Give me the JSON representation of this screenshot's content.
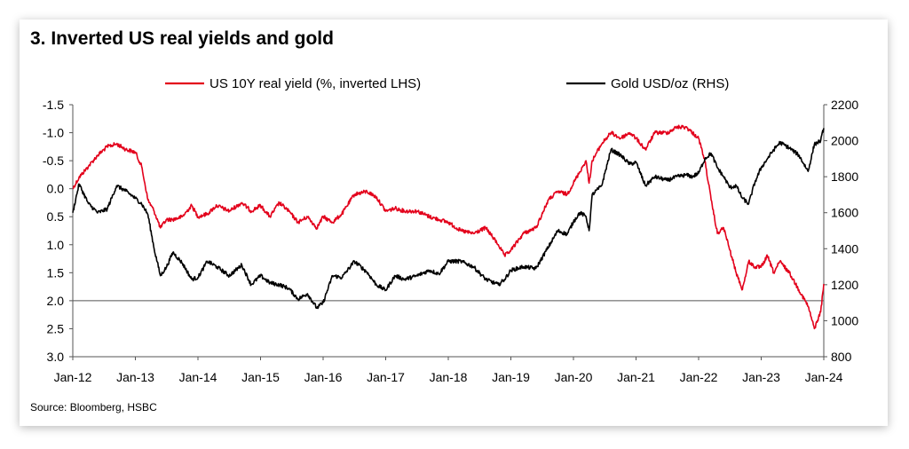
{
  "title": "3. Inverted US real yields and gold",
  "source": "Source: Bloomberg, HSBC",
  "chart_data": {
    "type": "line",
    "title": "3. Inverted US real yields and gold",
    "x_tick_labels": [
      "Jan-12",
      "Jan-13",
      "Jan-14",
      "Jan-15",
      "Jan-16",
      "Jan-17",
      "Jan-18",
      "Jan-19",
      "Jan-20",
      "Jan-21",
      "Jan-22",
      "Jan-23",
      "Jan-24"
    ],
    "x_range": [
      2012.0,
      2024.0
    ],
    "y_left": {
      "label": "US 10Y real yield (%, inverted LHS)",
      "range": [
        -1.5,
        3.0
      ],
      "inverted": true,
      "ticks": [
        "-1.5",
        "-1.0",
        "-0.5",
        "0.0",
        "0.5",
        "1.0",
        "1.5",
        "2.0",
        "2.5",
        "3.0"
      ]
    },
    "y_right": {
      "label": "Gold USD/oz (RHS)",
      "range": [
        800,
        2200
      ],
      "ticks": [
        "2200",
        "2000",
        "1800",
        "1600",
        "1400",
        "1200",
        "1000",
        "800"
      ]
    },
    "legend_position": "top",
    "series": [
      {
        "name": "US 10Y real yield (%, inverted LHS)",
        "axis": "left",
        "color": "#e3001b",
        "x": [
          2012.0,
          2012.1,
          2012.25,
          2012.4,
          2012.55,
          2012.7,
          2012.85,
          2013.0,
          2013.1,
          2013.2,
          2013.3,
          2013.4,
          2013.5,
          2013.6,
          2013.75,
          2013.9,
          2014.0,
          2014.15,
          2014.3,
          2014.5,
          2014.7,
          2014.85,
          2015.0,
          2015.15,
          2015.3,
          2015.45,
          2015.6,
          2015.75,
          2015.9,
          2016.0,
          2016.15,
          2016.3,
          2016.5,
          2016.7,
          2016.85,
          2017.0,
          2017.15,
          2017.3,
          2017.5,
          2017.7,
          2017.85,
          2018.0,
          2018.2,
          2018.4,
          2018.6,
          2018.8,
          2018.9,
          2019.0,
          2019.2,
          2019.4,
          2019.6,
          2019.75,
          2019.9,
          2020.0,
          2020.1,
          2020.2,
          2020.25,
          2020.3,
          2020.45,
          2020.6,
          2020.75,
          2020.9,
          2021.0,
          2021.15,
          2021.3,
          2021.5,
          2021.65,
          2021.8,
          2021.9,
          2022.0,
          2022.1,
          2022.2,
          2022.3,
          2022.4,
          2022.5,
          2022.6,
          2022.7,
          2022.8,
          2022.9,
          2023.0,
          2023.1,
          2023.2,
          2023.3,
          2023.45,
          2023.6,
          2023.75,
          2023.85,
          2023.95,
          2024.0
        ],
        "values": [
          0.0,
          -0.2,
          -0.4,
          -0.6,
          -0.75,
          -0.8,
          -0.7,
          -0.65,
          -0.4,
          0.2,
          0.4,
          0.7,
          0.55,
          0.55,
          0.5,
          0.3,
          0.5,
          0.45,
          0.3,
          0.4,
          0.25,
          0.4,
          0.3,
          0.5,
          0.25,
          0.4,
          0.6,
          0.5,
          0.7,
          0.5,
          0.6,
          0.45,
          0.1,
          0.05,
          0.15,
          0.4,
          0.35,
          0.4,
          0.4,
          0.5,
          0.55,
          0.6,
          0.75,
          0.8,
          0.7,
          1.0,
          1.2,
          1.1,
          0.8,
          0.7,
          0.2,
          0.05,
          0.1,
          -0.1,
          -0.3,
          -0.5,
          -0.1,
          -0.5,
          -0.8,
          -1.0,
          -0.9,
          -1.0,
          -0.9,
          -0.7,
          -1.0,
          -1.0,
          -1.1,
          -1.1,
          -1.0,
          -0.9,
          -0.5,
          0.2,
          0.8,
          0.7,
          1.1,
          1.5,
          1.8,
          1.3,
          1.4,
          1.4,
          1.2,
          1.5,
          1.3,
          1.5,
          1.8,
          2.1,
          2.5,
          2.2,
          1.7
        ]
      },
      {
        "name": "Gold USD/oz (RHS)",
        "axis": "right",
        "color": "#000000",
        "x": [
          2012.0,
          2012.1,
          2012.25,
          2012.4,
          2012.55,
          2012.7,
          2012.85,
          2013.0,
          2013.1,
          2013.2,
          2013.3,
          2013.4,
          2013.5,
          2013.6,
          2013.75,
          2013.9,
          2014.0,
          2014.15,
          2014.3,
          2014.5,
          2014.7,
          2014.85,
          2015.0,
          2015.15,
          2015.3,
          2015.45,
          2015.6,
          2015.75,
          2015.9,
          2016.0,
          2016.15,
          2016.3,
          2016.5,
          2016.7,
          2016.85,
          2017.0,
          2017.15,
          2017.3,
          2017.5,
          2017.7,
          2017.85,
          2018.0,
          2018.2,
          2018.4,
          2018.6,
          2018.8,
          2018.9,
          2019.0,
          2019.2,
          2019.4,
          2019.6,
          2019.75,
          2019.9,
          2020.0,
          2020.1,
          2020.2,
          2020.25,
          2020.3,
          2020.45,
          2020.6,
          2020.75,
          2020.9,
          2021.0,
          2021.15,
          2021.3,
          2021.5,
          2021.65,
          2021.8,
          2021.9,
          2022.0,
          2022.1,
          2022.2,
          2022.3,
          2022.4,
          2022.5,
          2022.6,
          2022.7,
          2022.8,
          2022.9,
          2023.0,
          2023.1,
          2023.2,
          2023.3,
          2023.45,
          2023.6,
          2023.75,
          2023.85,
          2023.95,
          2024.0
        ],
        "values": [
          1600,
          1760,
          1650,
          1600,
          1620,
          1750,
          1720,
          1680,
          1650,
          1590,
          1400,
          1250,
          1300,
          1380,
          1320,
          1230,
          1240,
          1330,
          1300,
          1250,
          1310,
          1200,
          1250,
          1210,
          1200,
          1180,
          1120,
          1150,
          1070,
          1100,
          1250,
          1240,
          1330,
          1270,
          1200,
          1170,
          1250,
          1230,
          1250,
          1280,
          1260,
          1330,
          1330,
          1300,
          1230,
          1200,
          1230,
          1280,
          1300,
          1290,
          1410,
          1500,
          1480,
          1550,
          1600,
          1580,
          1500,
          1700,
          1750,
          1950,
          1920,
          1870,
          1880,
          1750,
          1800,
          1780,
          1800,
          1810,
          1800,
          1820,
          1900,
          1930,
          1850,
          1800,
          1740,
          1750,
          1680,
          1650,
          1770,
          1850,
          1900,
          1950,
          1990,
          1960,
          1920,
          1830,
          1980,
          2000,
          2070
        ]
      }
    ]
  }
}
